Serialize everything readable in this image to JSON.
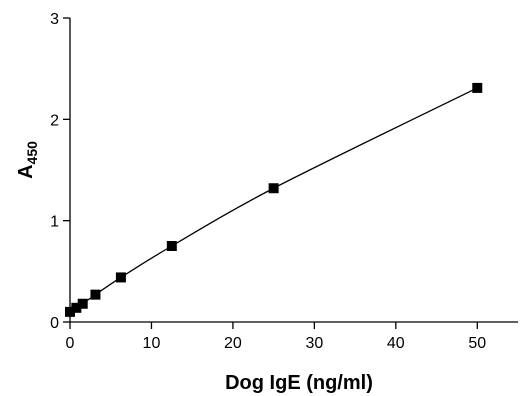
{
  "chart_data": {
    "type": "scatter",
    "xlabel": "Dog IgE (ng/ml)",
    "ylabel_main": "A",
    "ylabel_sub": "450",
    "xlim": [
      0,
      55
    ],
    "ylim": [
      0,
      3
    ],
    "xticks": [
      0,
      10,
      20,
      30,
      40,
      50
    ],
    "yticks": [
      0,
      1,
      2,
      3
    ],
    "grid": false,
    "fit_line": true,
    "marker": "square",
    "color": "#000000",
    "series": [
      {
        "x": [
          0,
          0.78,
          1.56,
          3.125,
          6.25,
          12.5,
          25,
          50
        ],
        "y": [
          0.1,
          0.14,
          0.18,
          0.27,
          0.44,
          0.75,
          1.32,
          2.31
        ]
      }
    ]
  }
}
